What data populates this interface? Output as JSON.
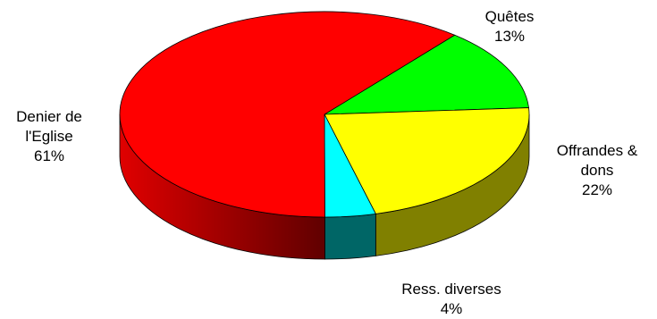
{
  "chart_data": {
    "type": "pie",
    "style": "3d",
    "title": "",
    "slices": [
      {
        "label_lines": [
          "Quêtes"
        ],
        "percent_label": "13%",
        "value": 13,
        "color": "#00ff00",
        "side_color": "#008000"
      },
      {
        "label_lines": [
          "Offrandes &",
          "dons"
        ],
        "percent_label": "22%",
        "value": 22,
        "color": "#ffff00",
        "side_color": "#808000"
      },
      {
        "label_lines": [
          "Ress. diverses"
        ],
        "percent_label": "4%",
        "value": 4,
        "color": "#00ffff",
        "side_color": "#006666"
      },
      {
        "label_lines": [
          "Denier de",
          "l'Eglise"
        ],
        "percent_label": "61%",
        "value": 61,
        "color": "#ff0000",
        "side_color": "#b00000"
      }
    ]
  }
}
